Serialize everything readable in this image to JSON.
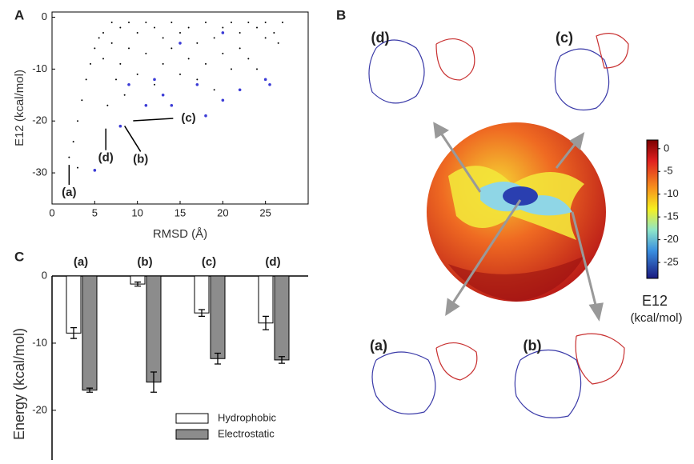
{
  "chart_data": [
    {
      "type": "scatter",
      "panel_label": "A",
      "x_label": "RMSD (Å)",
      "y_label": "E12 (kcal/mol)",
      "xlim": [
        0,
        30
      ],
      "ylim": [
        -36,
        1
      ],
      "xticks": [
        0,
        5,
        10,
        15,
        20,
        25
      ],
      "yticks": [
        0,
        -10,
        -20,
        -30
      ],
      "series": [
        {
          "color": "#000000",
          "size": 1,
          "x": [
            2,
            2.5,
            3,
            3.5,
            4,
            4.5,
            5,
            5.5,
            6,
            6,
            7,
            7,
            7.5,
            8,
            8,
            8.5,
            9,
            9,
            10,
            10,
            11,
            11,
            12,
            12,
            13,
            13,
            14,
            14,
            15,
            15,
            16,
            16,
            17,
            17,
            18,
            18,
            19,
            19,
            20,
            20,
            21,
            21,
            22,
            22,
            23,
            23,
            24,
            24,
            25,
            25,
            26,
            26.5,
            27,
            6.5,
            3
          ],
          "y": [
            -27,
            -24,
            -20,
            -16,
            -12,
            -9,
            -6,
            -4,
            -3,
            -8,
            -1,
            -5,
            -12,
            -2,
            -9,
            -15,
            -1,
            -6,
            -3,
            -11,
            -1,
            -7,
            -2,
            -13,
            -4,
            -9,
            -1,
            -6,
            -3,
            -11,
            -2,
            -8,
            -5,
            -12,
            -1,
            -9,
            -4,
            -14,
            -2,
            -7,
            -1,
            -10,
            -3,
            -6,
            -1,
            -8,
            -2,
            -10,
            -4,
            -1,
            -3,
            -5,
            -1,
            -17,
            -29
          ]
        },
        {
          "color": "#3b3bd6",
          "size": 1.8,
          "x": [
            5,
            8,
            11,
            13,
            14,
            17,
            18,
            20,
            22,
            25,
            25.5,
            12,
            9,
            15,
            20
          ],
          "y": [
            -29.5,
            -21,
            -17,
            -15,
            -17,
            -13,
            -19,
            -16,
            -14,
            -12,
            -13,
            -12,
            -13,
            -5,
            -3
          ]
        }
      ],
      "annotations": [
        {
          "text": "(a)",
          "x": 2,
          "y": -28
        },
        {
          "text": "(b)",
          "x": 8.5,
          "y": -20.5
        },
        {
          "text": "(c)",
          "x": 9.5,
          "y": -19.5
        },
        {
          "text": "(d)",
          "x": 6.3,
          "y": -21
        }
      ]
    },
    {
      "type": "bar",
      "panel_label": "C",
      "y_label": "Energy (kcal/mol)",
      "categories": [
        "(a)",
        "(b)",
        "(c)",
        "(d)"
      ],
      "ylim": [
        -27.4,
        0
      ],
      "yticks": [
        0,
        -10,
        -20
      ],
      "series": [
        {
          "name": "Hydrophobic",
          "color": "#ffffff",
          "values": [
            -8.5,
            -1.2,
            -5.5,
            -7
          ],
          "errors": [
            0.8,
            0.3,
            0.5,
            1
          ]
        },
        {
          "name": "Electrostatic",
          "color": "#8c8c8c",
          "values": [
            -17,
            -15.8,
            -12.3,
            -12.5
          ],
          "errors": [
            0.3,
            1.5,
            0.8,
            0.5
          ]
        }
      ]
    },
    {
      "type": "colorbar",
      "panel_label": "B",
      "label": "E12",
      "unit": "(kcal/mol)",
      "lim": [
        -28.5,
        1.9
      ],
      "ticks": [
        0,
        -5,
        -10,
        -15,
        -20,
        -25
      ],
      "structure_labels": [
        "(d)",
        "(c)",
        "(a)",
        "(b)"
      ]
    }
  ]
}
